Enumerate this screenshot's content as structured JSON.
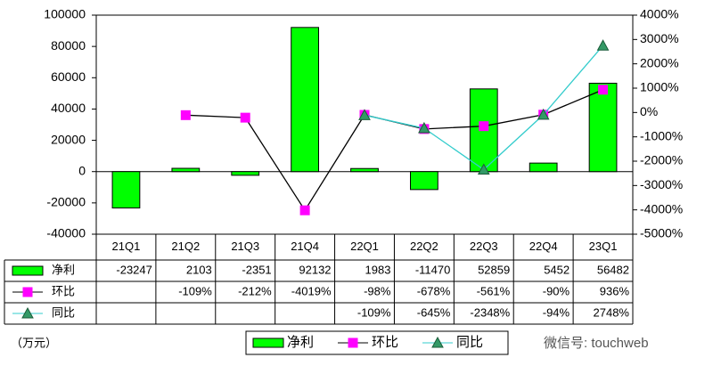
{
  "chart_data": {
    "type": "bar-line",
    "categories": [
      "21Q1",
      "21Q2",
      "21Q3",
      "21Q4",
      "22Q1",
      "22Q2",
      "22Q3",
      "22Q4",
      "23Q1"
    ],
    "series": [
      {
        "name": "净利",
        "type": "bar",
        "color": "#00ff00",
        "values": [
          -23247,
          2103,
          -2351,
          92132,
          1983,
          -11470,
          52859,
          5452,
          56482
        ]
      },
      {
        "name": "环比",
        "type": "line",
        "axis": "y2",
        "color": "#000000",
        "marker": "square",
        "marker_color": "#ff00ff",
        "values": [
          null,
          -109,
          -212,
          -4019,
          -98,
          -678,
          -561,
          -90,
          936
        ],
        "value_labels": [
          null,
          "-109%",
          "-212%",
          "-4019%",
          "-98%",
          "-678%",
          "-561%",
          "-90%",
          "936%"
        ]
      },
      {
        "name": "同比",
        "type": "line",
        "axis": "y2",
        "color": "#33cccc",
        "marker": "triangle",
        "marker_color": "#339966",
        "values": [
          null,
          null,
          null,
          null,
          -109,
          -645,
          -2348,
          -94,
          2748
        ],
        "value_labels": [
          null,
          null,
          null,
          null,
          "-109%",
          "-645%",
          "-2348%",
          "-94%",
          "2748%"
        ]
      }
    ],
    "ylim": [
      -40000,
      100000
    ],
    "yticks": [
      -40000,
      -20000,
      0,
      20000,
      40000,
      60000,
      80000,
      100000
    ],
    "y2lim": [
      -5000,
      4000
    ],
    "y2ticks": [
      {
        "value": -5000,
        "label": "-5000%"
      },
      {
        "value": -4000,
        "label": "-4000%"
      },
      {
        "value": -3000,
        "label": "-3000%"
      },
      {
        "value": -2000,
        "label": "-2000%"
      },
      {
        "value": -1000,
        "label": "-1000%"
      },
      {
        "value": 0,
        "label": "0%"
      },
      {
        "value": 1000,
        "label": "1000%"
      },
      {
        "value": 2000,
        "label": "2000%"
      },
      {
        "value": 3000,
        "label": "3000%"
      },
      {
        "value": 4000,
        "label": "4000%"
      }
    ],
    "unit_label": "（万元）",
    "watermark": "微信号: touchweb",
    "legend": "bottom"
  }
}
